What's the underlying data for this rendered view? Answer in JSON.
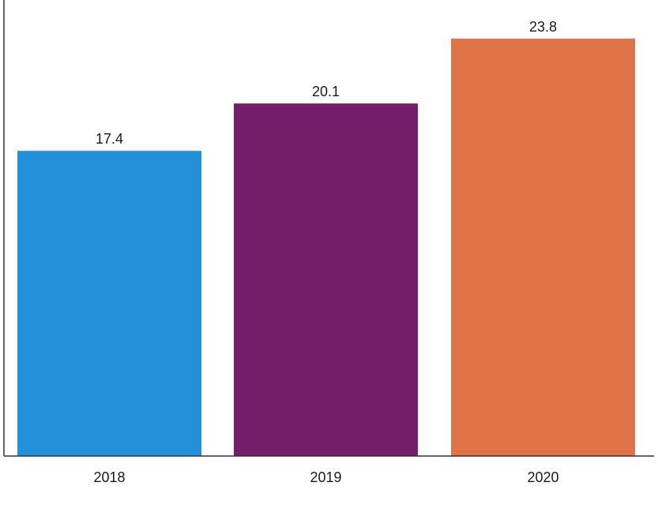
{
  "chart_data": {
    "type": "bar",
    "title": "",
    "xlabel": "",
    "ylabel": "",
    "categories": [
      "2018",
      "2019",
      "2020"
    ],
    "values": [
      17.4,
      20.1,
      23.8
    ],
    "value_labels": [
      "17.4",
      "20.1",
      "23.8"
    ],
    "colors": [
      "#2391d9",
      "#731d6b",
      "#e07347"
    ],
    "ylim": [
      0,
      26.0
    ],
    "grid": false,
    "legend": "none"
  }
}
